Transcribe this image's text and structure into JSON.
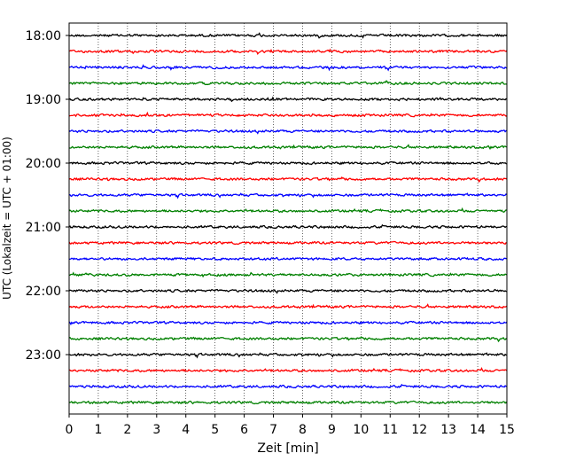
{
  "chart_data": {
    "type": "line",
    "title": "",
    "xlabel": "Zeit  [min]",
    "ylabel": "UTC (Lokalzeit = UTC + 01:00)",
    "xlim": [
      0,
      15
    ],
    "x_ticks": [
      "0",
      "1",
      "2",
      "3",
      "4",
      "5",
      "6",
      "7",
      "8",
      "9",
      "10",
      "11",
      "12",
      "13",
      "14",
      "15"
    ],
    "y_tick_labels": [
      {
        "label": "18:00",
        "trace_index": 0
      },
      {
        "label": "19:00",
        "trace_index": 4
      },
      {
        "label": "20:00",
        "trace_index": 8
      },
      {
        "label": "21:00",
        "trace_index": 12
      },
      {
        "label": "22:00",
        "trace_index": 16
      },
      {
        "label": "23:00",
        "trace_index": 20
      }
    ],
    "trace_count": 24,
    "trace_colors": [
      "#000000",
      "#ff0000",
      "#0000ff",
      "#008000"
    ],
    "grid": "vertical dotted lines at each minute",
    "legend": "none"
  }
}
